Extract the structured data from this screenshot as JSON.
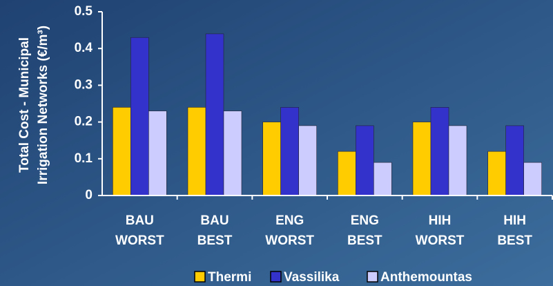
{
  "chart_data": {
    "type": "bar",
    "ylabel": [
      "Total Cost - Municipal",
      "Irrigation Networks (€/m³)"
    ],
    "categories": [
      [
        "BAU",
        "WORST"
      ],
      [
        "BAU",
        "BEST"
      ],
      [
        "ENG",
        "WORST"
      ],
      [
        "ENG",
        "BEST"
      ],
      [
        "HIH",
        "WORST"
      ],
      [
        "HIH",
        "BEST"
      ]
    ],
    "series": [
      {
        "name": "Thermi",
        "color": "#ffcc00",
        "values": [
          0.24,
          0.24,
          0.2,
          0.12,
          0.2,
          0.12
        ]
      },
      {
        "name": "Vassilika",
        "color": "#3333cc",
        "values": [
          0.43,
          0.44,
          0.24,
          0.19,
          0.24,
          0.19
        ]
      },
      {
        "name": "Anthemountas",
        "color": "#ccccff",
        "values": [
          0.23,
          0.23,
          0.19,
          0.09,
          0.19,
          0.09
        ]
      }
    ],
    "ylim": [
      0,
      0.5
    ],
    "yticks": [
      0,
      0.1,
      0.2,
      0.3,
      0.4,
      0.5
    ],
    "grid": false,
    "legend": "bottom"
  }
}
